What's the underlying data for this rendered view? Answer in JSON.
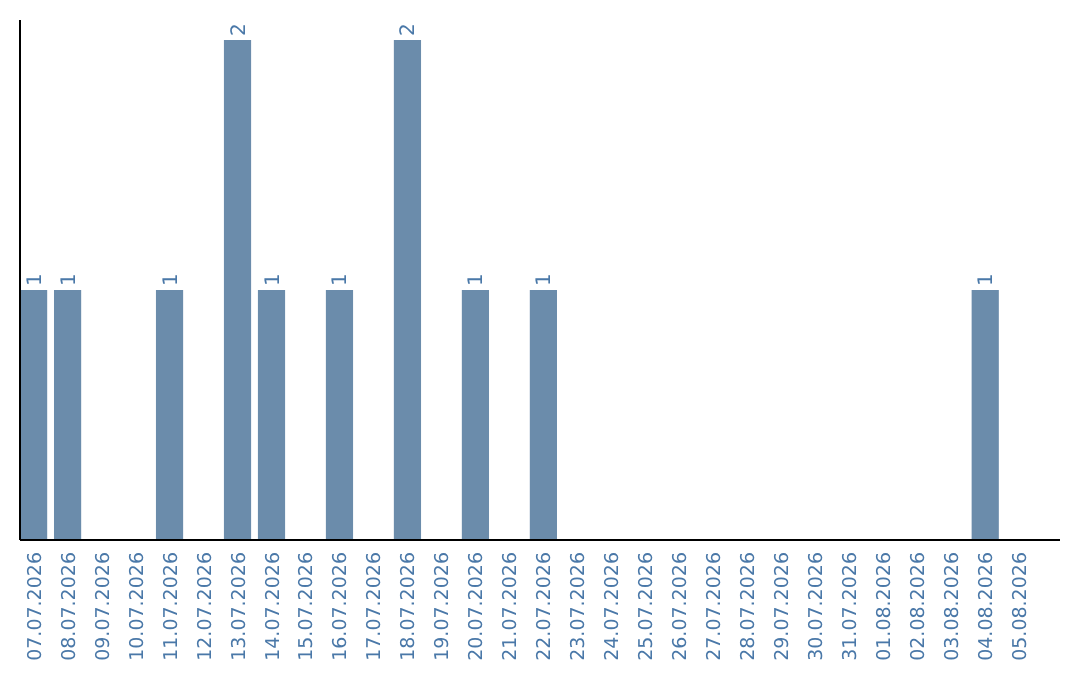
{
  "chart_data": {
    "type": "bar",
    "categories": [
      "07.07.2026",
      "08.07.2026",
      "09.07.2026",
      "10.07.2026",
      "11.07.2026",
      "12.07.2026",
      "13.07.2026",
      "14.07.2026",
      "15.07.2026",
      "16.07.2026",
      "17.07.2026",
      "18.07.2026",
      "19.07.2026",
      "20.07.2026",
      "21.07.2026",
      "22.07.2026",
      "23.07.2026",
      "24.07.2026",
      "25.07.2026",
      "26.07.2026",
      "27.07.2026",
      "28.07.2026",
      "29.07.2026",
      "30.07.2026",
      "31.07.2026",
      "01.08.2026",
      "02.08.2026",
      "03.08.2026",
      "04.08.2026",
      "05.08.2026"
    ],
    "values": [
      1,
      1,
      0,
      0,
      1,
      0,
      2,
      1,
      0,
      1,
      0,
      2,
      0,
      1,
      0,
      1,
      0,
      0,
      0,
      0,
      0,
      0,
      0,
      0,
      0,
      0,
      0,
      0,
      1,
      0
    ],
    "value_labels": [
      "1",
      "1",
      null,
      null,
      "1",
      null,
      "2",
      "1",
      null,
      "1",
      null,
      "2",
      null,
      "1",
      null,
      "1",
      null,
      null,
      null,
      null,
      null,
      null,
      null,
      null,
      null,
      null,
      null,
      null,
      "1",
      null
    ],
    "color": "#6b8cab",
    "tick_labels": "x"
  }
}
